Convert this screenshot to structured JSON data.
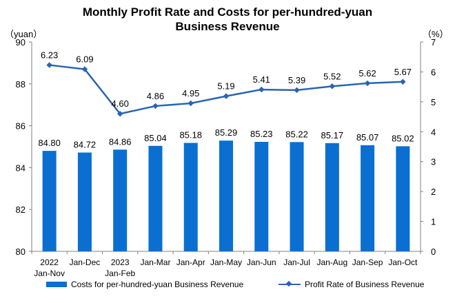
{
  "chart_data": {
    "type": "bar+line",
    "title_line1": "Monthly Profit Rate and Costs for per-hundred-yuan",
    "title_line2": "Business Revenue",
    "left_unit": "（yuan）",
    "right_unit": "（%）",
    "categories": [
      [
        "2022",
        "Jan-Nov"
      ],
      [
        "Jan-Dec"
      ],
      [
        "2023",
        "Jan-Feb"
      ],
      [
        "Jan-Mar"
      ],
      [
        "Jan-Apr"
      ],
      [
        "Jan-May"
      ],
      [
        "Jan-Jun"
      ],
      [
        "Jan-Jul"
      ],
      [
        "Jan-Aug"
      ],
      [
        "Jan-Sep"
      ],
      [
        "Jan-Oct"
      ]
    ],
    "left_axis": {
      "min": 80,
      "max": 90,
      "step": 2
    },
    "right_axis": {
      "min": 0,
      "max": 7,
      "step": 1
    },
    "series": [
      {
        "name": "Costs for per-hundred-yuan Business Revenue",
        "type": "bar",
        "axis": "left",
        "color": "#0a6fd1",
        "values": [
          84.8,
          84.72,
          84.86,
          85.04,
          85.18,
          85.29,
          85.23,
          85.22,
          85.17,
          85.07,
          85.02
        ],
        "labels": [
          "84.80",
          "84.72",
          "84.86",
          "85.04",
          "85.18",
          "85.29",
          "85.23",
          "85.22",
          "85.17",
          "85.07",
          "85.02"
        ]
      },
      {
        "name": "Profit Rate of Business Revenue",
        "type": "line",
        "axis": "right",
        "color": "#2a63b4",
        "values": [
          6.23,
          6.09,
          4.6,
          4.86,
          4.95,
          5.19,
          5.41,
          5.39,
          5.52,
          5.62,
          5.67
        ],
        "labels": [
          "6.23",
          "6.09",
          "4.60",
          "4.86",
          "4.95",
          "5.19",
          "5.41",
          "5.39",
          "5.52",
          "5.62",
          "5.67"
        ]
      }
    ],
    "legend_position": "bottom",
    "grid": false
  }
}
